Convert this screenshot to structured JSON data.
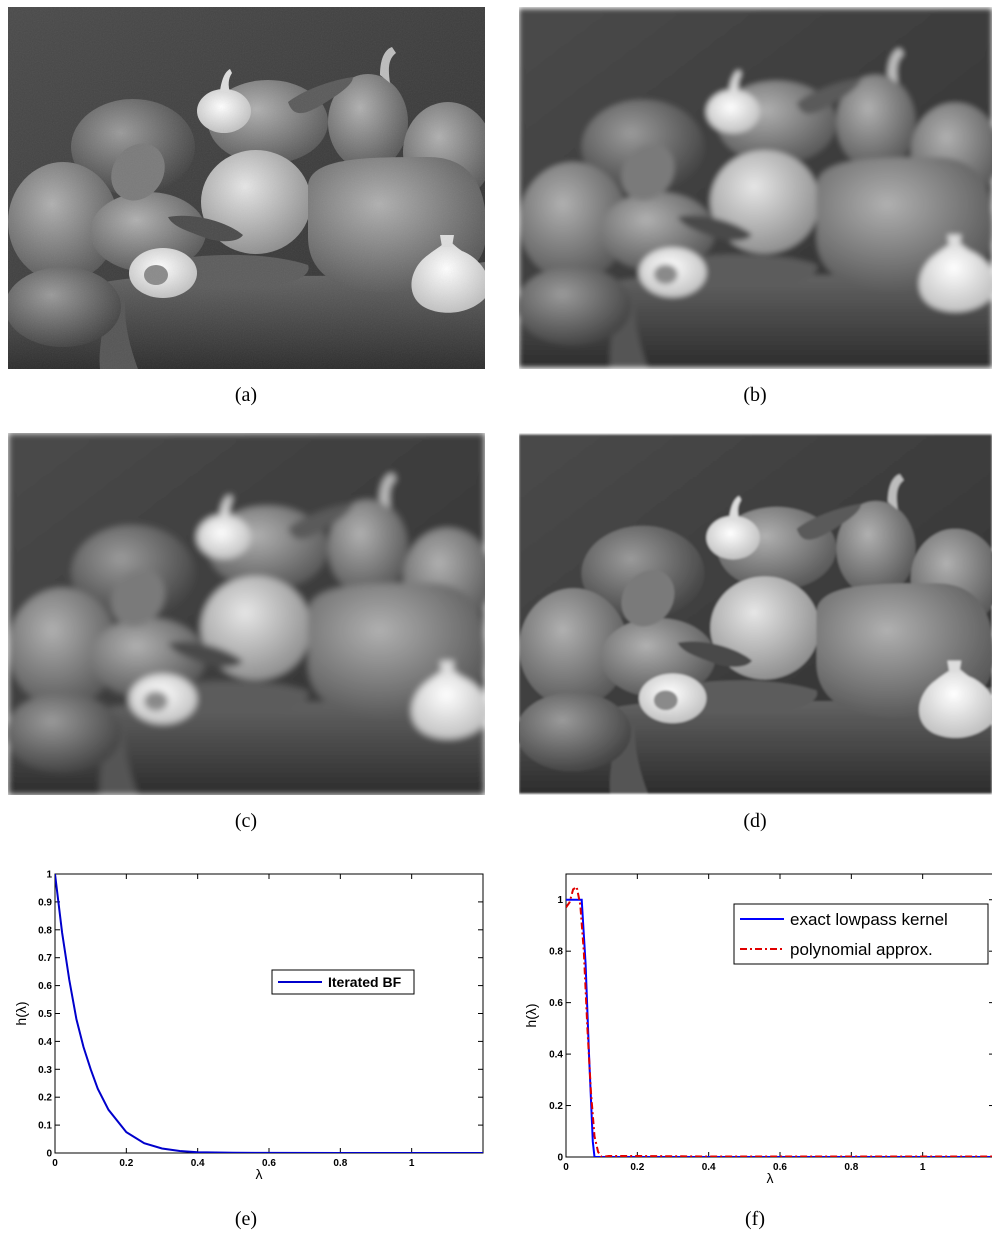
{
  "captions": {
    "a": "(a)",
    "b": "(b)",
    "c": "(c)",
    "d": "(d)",
    "e": "(e)",
    "f": "(f)"
  },
  "images": [
    {
      "id": "a",
      "content": "peppers-original-grayscale"
    },
    {
      "id": "b",
      "content": "peppers-smoothed-piecewise"
    },
    {
      "id": "c",
      "content": "peppers-smoothed-blurred"
    },
    {
      "id": "d",
      "content": "peppers-smoothed-detail"
    }
  ],
  "chart_data": [
    {
      "id": "e",
      "type": "line",
      "xlabel": "λ",
      "ylabel": "h(λ)",
      "xlim": [
        0,
        1.2
      ],
      "ylim": [
        0,
        1
      ],
      "xticks": [
        "0",
        "0.2",
        "0.4",
        "0.6",
        "0.8",
        "1"
      ],
      "xtick_values": [
        0,
        0.2,
        0.4,
        0.6,
        0.8,
        1.0
      ],
      "yticks": [
        "0",
        "0.1",
        "0.2",
        "0.3",
        "0.4",
        "0.5",
        "0.6",
        "0.7",
        "0.8",
        "0.9",
        "1"
      ],
      "ytick_values": [
        0,
        0.1,
        0.2,
        0.3,
        0.4,
        0.5,
        0.6,
        0.7,
        0.8,
        0.9,
        1.0
      ],
      "legend": "right",
      "series": [
        {
          "name": "Iterated BF",
          "color": "#0000cc",
          "style": "solid",
          "x": [
            0,
            0.02,
            0.04,
            0.06,
            0.08,
            0.1,
            0.12,
            0.15,
            0.2,
            0.25,
            0.3,
            0.35,
            0.4,
            0.5,
            0.6,
            0.8,
            1.0,
            1.2
          ],
          "y": [
            1.0,
            0.79,
            0.62,
            0.48,
            0.38,
            0.3,
            0.23,
            0.155,
            0.075,
            0.035,
            0.016,
            0.007,
            0.003,
            0.0007,
            0.0002,
            0,
            0,
            0
          ]
        }
      ]
    },
    {
      "id": "f",
      "type": "line",
      "xlabel": "λ",
      "ylabel": "h(λ)",
      "xlim": [
        0,
        1.2
      ],
      "ylim": [
        0,
        1.1
      ],
      "xticks": [
        "0",
        "0.2",
        "0.4",
        "0.6",
        "0.8",
        "1"
      ],
      "xtick_values": [
        0,
        0.2,
        0.4,
        0.6,
        0.8,
        1.0
      ],
      "yticks": [
        "0",
        "0.2",
        "0.4",
        "0.6",
        "0.8",
        "1"
      ],
      "ytick_values": [
        0,
        0.2,
        0.4,
        0.6,
        0.8,
        1.0
      ],
      "legend": "top-right",
      "series": [
        {
          "name": "exact lowpass kernel",
          "color": "#0000ff",
          "style": "solid",
          "x": [
            0,
            0.044,
            0.055,
            0.065,
            0.075,
            0.08,
            1.2
          ],
          "y": [
            1.0,
            1.0,
            0.75,
            0.38,
            0.06,
            0,
            0
          ]
        },
        {
          "name": "polynomial approx.",
          "color": "#e00000",
          "style": "dashdot",
          "x": [
            0,
            0.01,
            0.02,
            0.03,
            0.04,
            0.05,
            0.06,
            0.07,
            0.08,
            0.09,
            0.1,
            0.12,
            0.2,
            0.4,
            0.6,
            0.8,
            1.0,
            1.2
          ],
          "y": [
            0.97,
            0.99,
            1.04,
            1.05,
            0.98,
            0.8,
            0.5,
            0.25,
            0.08,
            0.02,
            0.0,
            0.004,
            0.004,
            0.002,
            0.002,
            0.002,
            0.002,
            0.002
          ]
        }
      ]
    }
  ]
}
